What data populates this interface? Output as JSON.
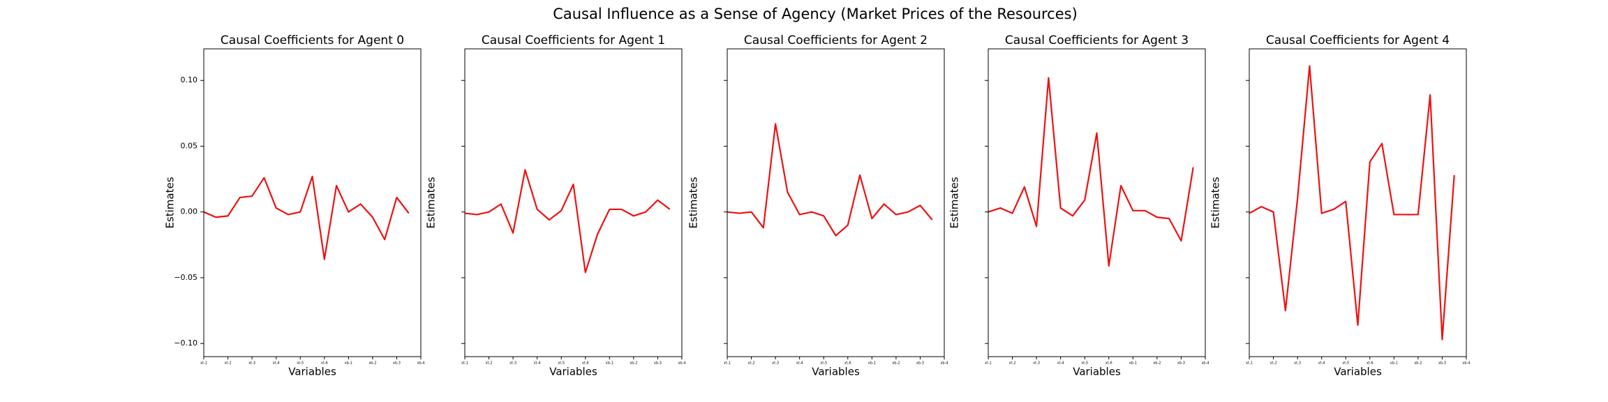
{
  "title": "Causal Influence as a Sense of Agency (Market Prices of the Resources)",
  "chart_data": [
    {
      "type": "line",
      "title": "Causal Coefficients for Agent 0",
      "xlabel": "Variables",
      "ylabel": "Estimates",
      "x": [
        0,
        1,
        2,
        3,
        4,
        5,
        6,
        7,
        8,
        9,
        10,
        11,
        12,
        13,
        14,
        15,
        16,
        17
      ],
      "series": [
        {
          "color": "#ee1111",
          "values": [
            0.0,
            -0.004,
            -0.003,
            0.011,
            0.012,
            0.026,
            0.003,
            -0.002,
            0.0,
            0.027,
            -0.036,
            0.02,
            0.0,
            0.006,
            -0.004,
            -0.021,
            0.011,
            -0.001
          ]
        }
      ],
      "xlim": [
        0,
        18
      ],
      "xticks": [
        {
          "value": 0,
          "label": "xt-1"
        },
        {
          "value": 2,
          "label": "xt-2"
        },
        {
          "value": 4,
          "label": "xt-3"
        },
        {
          "value": 6,
          "label": "xt-4"
        },
        {
          "value": 8,
          "label": "xt-5"
        },
        {
          "value": 10,
          "label": "xt-6"
        },
        {
          "value": 12,
          "label": "xb-1"
        },
        {
          "value": 14,
          "label": "xb-2"
        },
        {
          "value": 16,
          "label": "xb-3"
        },
        {
          "value": 18,
          "label": "xb-4"
        }
      ],
      "ylim": [
        -0.11,
        0.124
      ],
      "yticks": [
        {
          "value": -0.1,
          "label": "−0.10"
        },
        {
          "value": -0.05,
          "label": "−0.05"
        },
        {
          "value": 0,
          "label": "0.00"
        },
        {
          "value": 0.05,
          "label": "0.05"
        },
        {
          "value": 0.1,
          "label": "0.10"
        }
      ]
    },
    {
      "type": "line",
      "title": "Causal Coefficients for Agent 1",
      "xlabel": "Variables",
      "ylabel": "Estimates",
      "x": [
        0,
        1,
        2,
        3,
        4,
        5,
        6,
        7,
        8,
        9,
        10,
        11,
        12,
        13,
        14,
        15,
        16,
        17
      ],
      "series": [
        {
          "color": "#ee1111",
          "values": [
            -0.001,
            -0.002,
            0.0,
            0.006,
            -0.016,
            0.032,
            0.002,
            -0.006,
            0.001,
            0.021,
            -0.046,
            -0.017,
            0.002,
            0.002,
            -0.003,
            0.0,
            0.009,
            0.002
          ]
        }
      ],
      "xlim": [
        0,
        18
      ],
      "xticks": [
        {
          "value": 0,
          "label": "xt-1"
        },
        {
          "value": 2,
          "label": "xt-2"
        },
        {
          "value": 4,
          "label": "xt-3"
        },
        {
          "value": 6,
          "label": "xt-4"
        },
        {
          "value": 8,
          "label": "xt-5"
        },
        {
          "value": 10,
          "label": "xt-6"
        },
        {
          "value": 12,
          "label": "xb-1"
        },
        {
          "value": 14,
          "label": "xb-2"
        },
        {
          "value": 16,
          "label": "xb-3"
        },
        {
          "value": 18,
          "label": "xb-4"
        }
      ],
      "ylim": [
        -0.11,
        0.124
      ],
      "yticks": [
        -0.1,
        -0.05,
        0,
        0.05,
        0.1
      ]
    },
    {
      "type": "line",
      "title": "Causal Coefficients for Agent 2",
      "xlabel": "Variables",
      "ylabel": "Estimates",
      "x": [
        0,
        1,
        2,
        3,
        4,
        5,
        6,
        7,
        8,
        9,
        10,
        11,
        12,
        13,
        14,
        15,
        16,
        17
      ],
      "series": [
        {
          "color": "#ee1111",
          "values": [
            0.0,
            -0.001,
            0.0,
            -0.012,
            0.067,
            0.015,
            -0.002,
            0.0,
            -0.003,
            -0.018,
            -0.01,
            0.028,
            -0.005,
            0.006,
            -0.002,
            0.0,
            0.005,
            -0.006
          ]
        }
      ],
      "xlim": [
        0,
        18
      ],
      "xticks": [
        {
          "value": 0,
          "label": "xt-1"
        },
        {
          "value": 2,
          "label": "xt-2"
        },
        {
          "value": 4,
          "label": "xt-3"
        },
        {
          "value": 6,
          "label": "xt-4"
        },
        {
          "value": 8,
          "label": "xt-5"
        },
        {
          "value": 10,
          "label": "xt-6"
        },
        {
          "value": 12,
          "label": "xb-1"
        },
        {
          "value": 14,
          "label": "xb-2"
        },
        {
          "value": 16,
          "label": "xb-3"
        },
        {
          "value": 18,
          "label": "xb-4"
        }
      ],
      "ylim": [
        -0.11,
        0.124
      ],
      "yticks": [
        -0.1,
        -0.05,
        0,
        0.05,
        0.1
      ]
    },
    {
      "type": "line",
      "title": "Causal Coefficients for Agent 3",
      "xlabel": "Variables",
      "ylabel": "Estimates",
      "x": [
        0,
        1,
        2,
        3,
        4,
        5,
        6,
        7,
        8,
        9,
        10,
        11,
        12,
        13,
        14,
        15,
        16,
        17
      ],
      "series": [
        {
          "color": "#ee1111",
          "values": [
            0.0,
            0.003,
            -0.001,
            0.019,
            -0.011,
            0.102,
            0.003,
            -0.003,
            0.009,
            0.06,
            -0.041,
            0.02,
            0.001,
            0.001,
            -0.004,
            -0.005,
            -0.022,
            0.034
          ]
        }
      ],
      "xlim": [
        0,
        18
      ],
      "xticks": [
        {
          "value": 0,
          "label": "xt-1"
        },
        {
          "value": 2,
          "label": "xt-2"
        },
        {
          "value": 4,
          "label": "xt-3"
        },
        {
          "value": 6,
          "label": "xt-4"
        },
        {
          "value": 8,
          "label": "xt-5"
        },
        {
          "value": 10,
          "label": "xt-6"
        },
        {
          "value": 12,
          "label": "xb-1"
        },
        {
          "value": 14,
          "label": "xb-2"
        },
        {
          "value": 16,
          "label": "xb-3"
        },
        {
          "value": 18,
          "label": "xb-4"
        }
      ],
      "ylim": [
        -0.11,
        0.124
      ],
      "yticks": [
        -0.1,
        -0.05,
        0,
        0.05,
        0.1
      ]
    },
    {
      "type": "line",
      "title": "Causal Coefficients for Agent 4",
      "xlabel": "Variables",
      "ylabel": "Estimates",
      "x": [
        0,
        1,
        2,
        3,
        4,
        5,
        6,
        7,
        8,
        9,
        10,
        11,
        12,
        13,
        14,
        15,
        16,
        17
      ],
      "series": [
        {
          "color": "#ee1111",
          "values": [
            -0.001,
            0.004,
            0.0,
            -0.075,
            0.01,
            0.111,
            -0.001,
            0.002,
            0.008,
            -0.086,
            0.038,
            0.052,
            -0.002,
            -0.002,
            -0.002,
            0.089,
            -0.097,
            0.028
          ]
        }
      ],
      "xlim": [
        0,
        18
      ],
      "xticks": [
        {
          "value": 0,
          "label": "xt-1"
        },
        {
          "value": 2,
          "label": "xt-2"
        },
        {
          "value": 4,
          "label": "xt-3"
        },
        {
          "value": 6,
          "label": "xt-4"
        },
        {
          "value": 8,
          "label": "xt-5"
        },
        {
          "value": 10,
          "label": "xt-6"
        },
        {
          "value": 12,
          "label": "xb-1"
        },
        {
          "value": 14,
          "label": "xb-2"
        },
        {
          "value": 16,
          "label": "xb-3"
        },
        {
          "value": 18,
          "label": "xb-4"
        }
      ],
      "ylim": [
        -0.11,
        0.124
      ],
      "yticks": [
        -0.1,
        -0.05,
        0,
        0.05,
        0.1
      ]
    }
  ]
}
